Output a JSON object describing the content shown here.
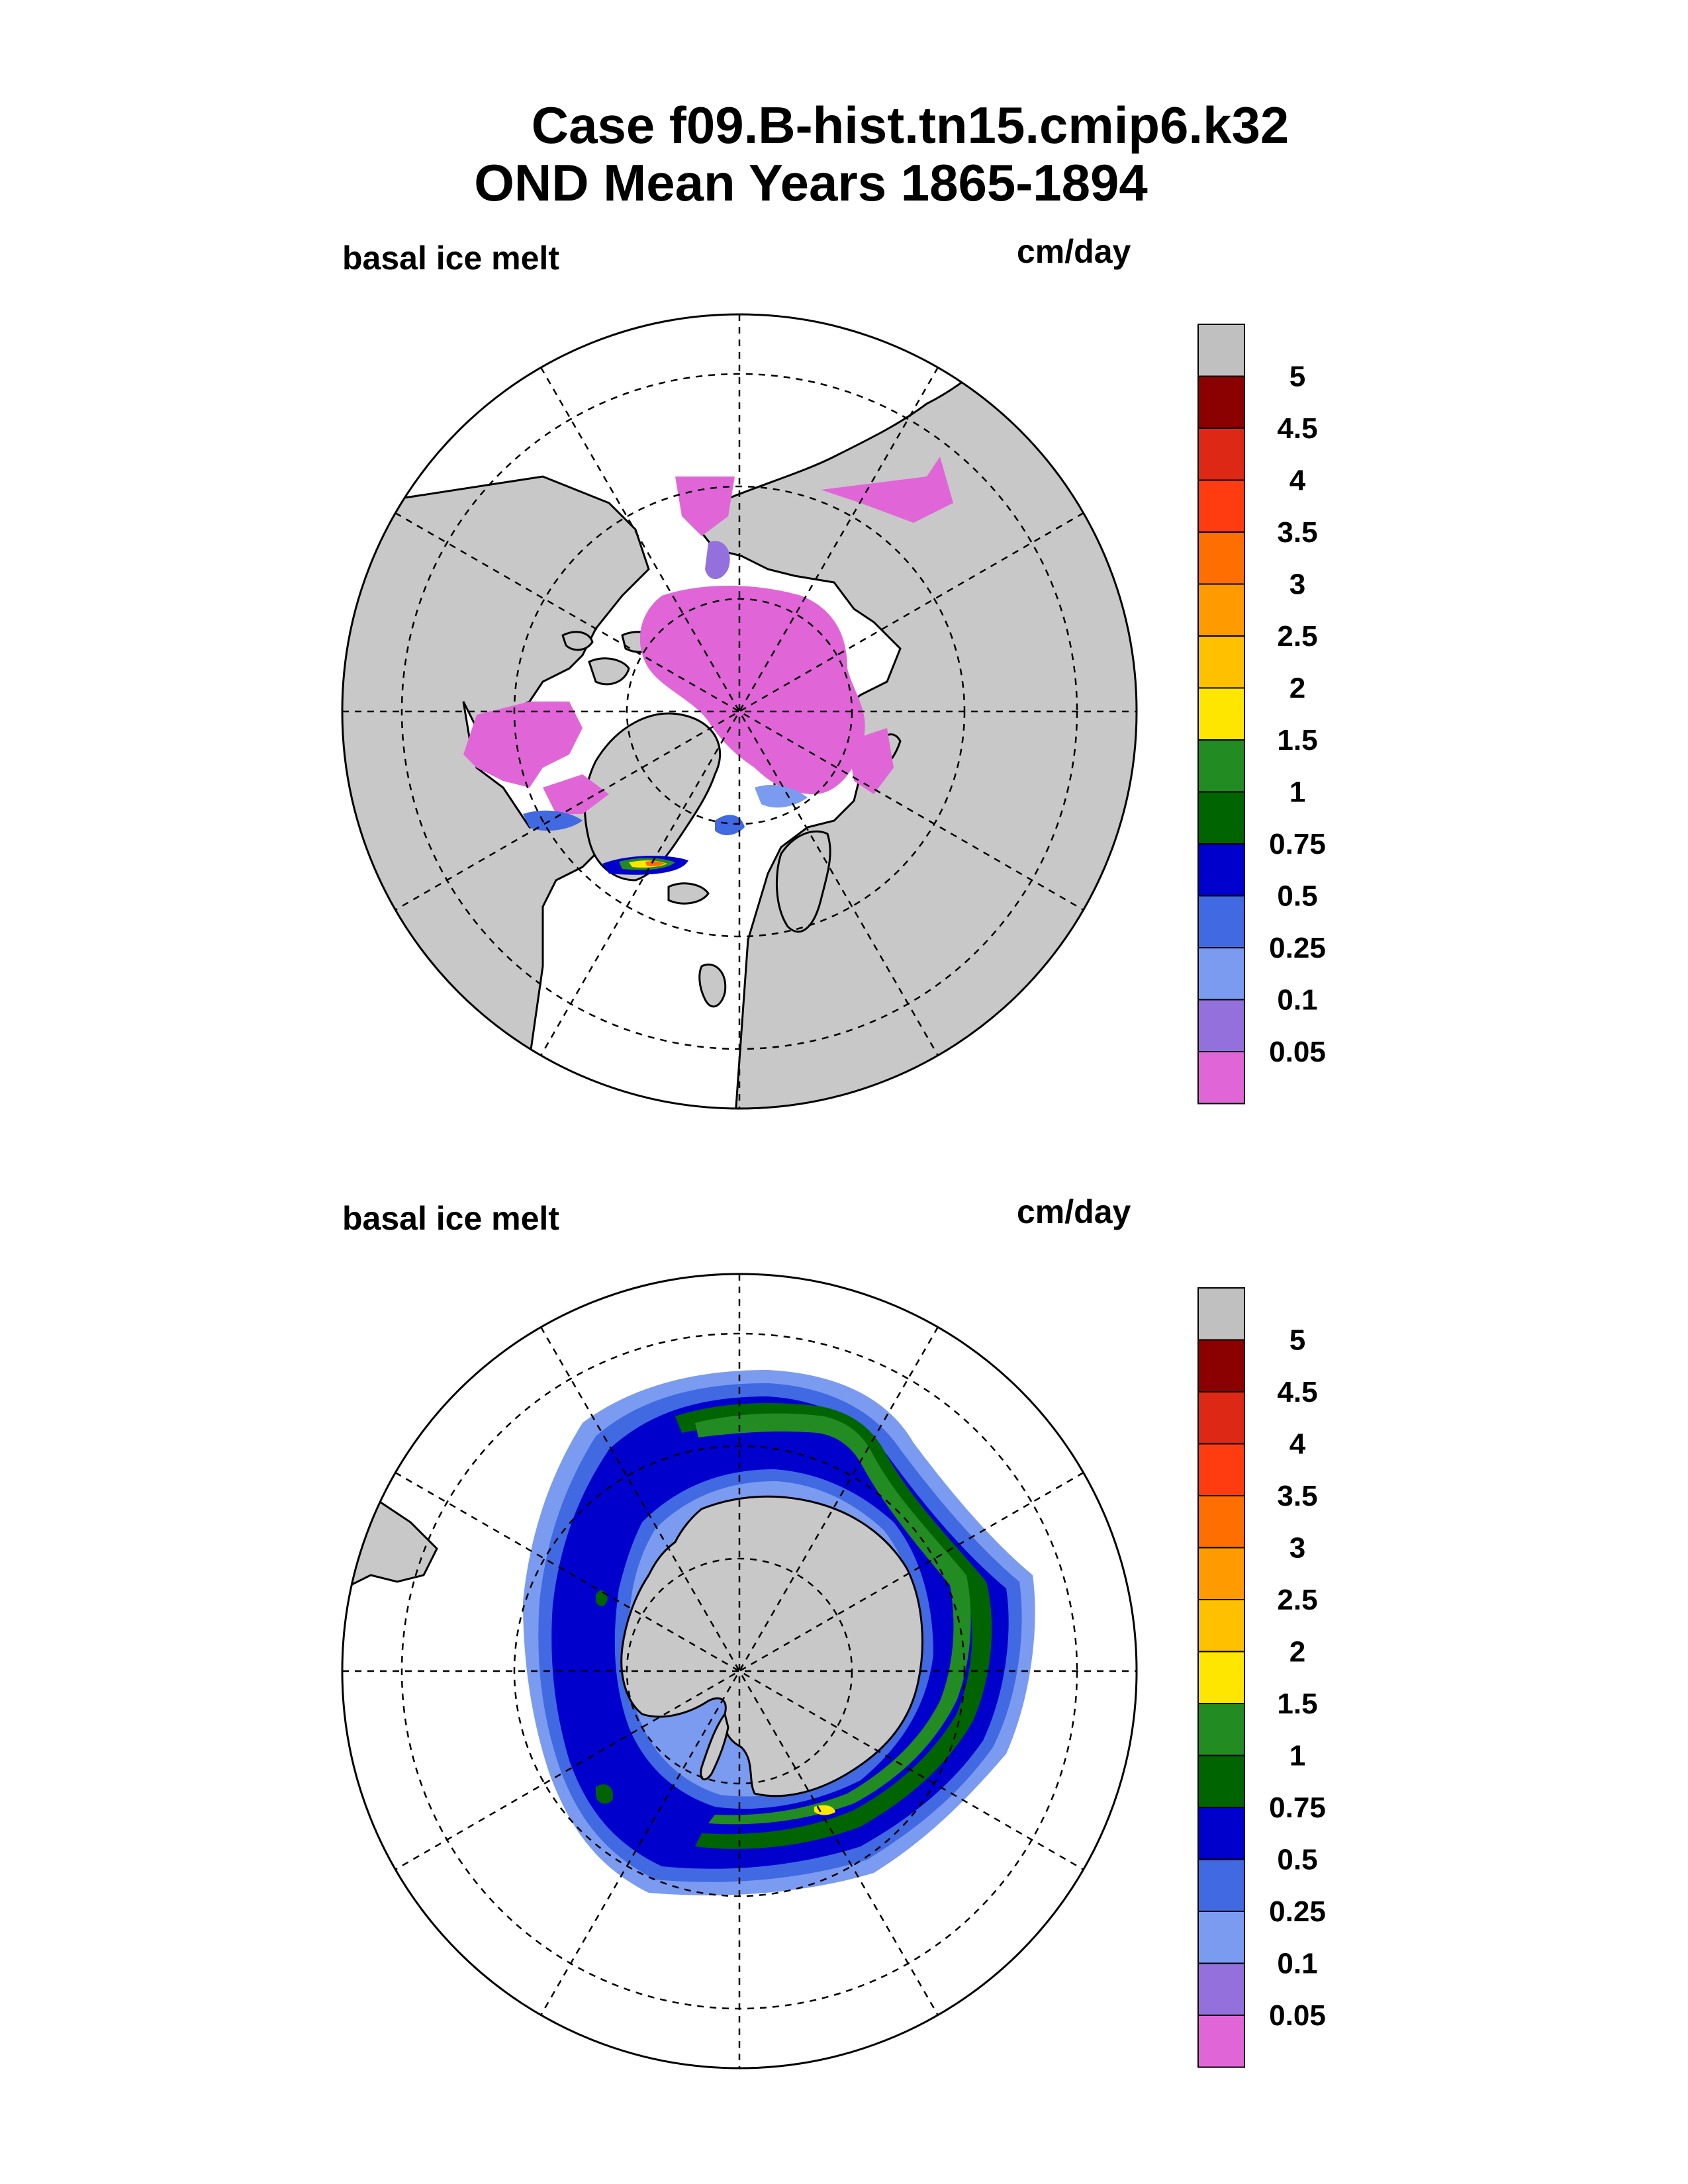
{
  "title": {
    "line1": "Case f09.B-hist.tn15.cmip6.k32",
    "line2": "OND Mean   Years 1865-1894"
  },
  "panels": [
    {
      "id": "north",
      "variable_label": "basal ice melt",
      "units_label": "cm/day",
      "hemisphere": "Northern"
    },
    {
      "id": "south",
      "variable_label": "basal ice melt",
      "units_label": "cm/day",
      "hemisphere": "Southern"
    }
  ],
  "colorbar": {
    "levels": [
      "5",
      "4.5",
      "4",
      "3.5",
      "3",
      "2.5",
      "2",
      "1.5",
      "1",
      "0.75",
      "0.5",
      "0.25",
      "0.1",
      "0.05"
    ],
    "colors_top_to_bottom": [
      "#c0c0c0",
      "#8b0000",
      "#dc2814",
      "#ff3c0f",
      "#ff6e00",
      "#ff9b00",
      "#ffc000",
      "#ffe600",
      "#228b22",
      "#006400",
      "#0000cd",
      "#4169e1",
      "#7a9bef",
      "#9370db",
      "#e066d8"
    ]
  },
  "colors": {
    "land": "#c8c8c8",
    "ocean": "#ffffff",
    "ice_thin": "#e066d8"
  }
}
